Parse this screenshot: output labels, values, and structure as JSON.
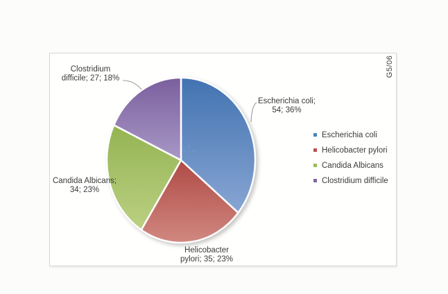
{
  "chart_data": {
    "type": "pie",
    "title": "",
    "categories": [
      "Escherichia coli",
      "Helicobacter pylori",
      "Candida Albicans",
      "Clostridium difficile"
    ],
    "values": [
      54,
      35,
      34,
      27
    ],
    "percents": [
      36,
      23,
      23,
      18
    ],
    "colors": [
      "#4F81BD",
      "#C0504D",
      "#9BBB59",
      "#8064A2"
    ],
    "gradients": [
      [
        "#4273b1",
        "#88a5d3"
      ],
      [
        "#b04a45",
        "#d08880"
      ],
      [
        "#94b452",
        "#bbd083"
      ],
      [
        "#7b5f9e",
        "#a898c5"
      ]
    ],
    "start_angle_deg": 0,
    "direction": "clockwise",
    "legend_position": "right",
    "data_label_format": "name; value; percent"
  },
  "pie_labels": [
    {
      "lines": [
        "Escherichia coli;",
        "54; 36%"
      ]
    },
    {
      "lines": [
        "Helicobacter",
        "pylori; 35; 23%"
      ]
    },
    {
      "lines": [
        "Candida Albicans;",
        "34; 23%"
      ]
    },
    {
      "lines": [
        "Clostridium",
        "difficile; 27; 18%"
      ]
    }
  ],
  "legend": {
    "items": [
      {
        "label": "Escherichia coli",
        "color": "#4F81BD"
      },
      {
        "label": "Helicobacter pylori",
        "color": "#C0504D"
      },
      {
        "label": "Candida Albicans",
        "color": "#9BBB59"
      },
      {
        "label": "Clostridium difficile",
        "color": "#8064A2"
      }
    ]
  },
  "corner_label": "G5/06"
}
